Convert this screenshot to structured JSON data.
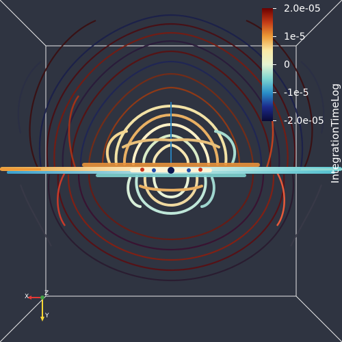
{
  "view": {
    "background": "#2f3441",
    "bbox_color": "#ffffff"
  },
  "colorbar": {
    "title": "IntegrationTimeLog",
    "ticks": [
      "2.0e-05",
      "1e-5",
      "0",
      "-1e-5",
      "-2.0e-05"
    ],
    "colors": [
      "#6b0000",
      "#c33a16",
      "#ec9a36",
      "#fbe9a6",
      "#e6f3d2",
      "#7fd5d1",
      "#2a8fc8",
      "#1c2a8b",
      "#0a0a35"
    ]
  },
  "axes": {
    "x_label": "X",
    "y_label": "Y",
    "z_label": "Z",
    "x_color": "#e53935",
    "y_color": "#fdd835",
    "z_color": "#43a047"
  }
}
